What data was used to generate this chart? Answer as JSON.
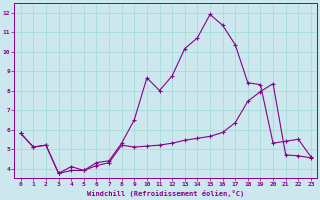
{
  "xlabel": "Windchill (Refroidissement éolien,°C)",
  "background_color": "#cce8ee",
  "line_color": "#880088",
  "grid_color": "#aadddd",
  "xlim": [
    -0.5,
    23.5
  ],
  "ylim": [
    3.5,
    12.5
  ],
  "xticks": [
    0,
    1,
    2,
    3,
    4,
    5,
    6,
    7,
    8,
    9,
    10,
    11,
    12,
    13,
    14,
    15,
    16,
    17,
    18,
    19,
    20,
    21,
    22,
    23
  ],
  "yticks": [
    4,
    5,
    6,
    7,
    8,
    9,
    10,
    11,
    12
  ],
  "line1_x": [
    0,
    1,
    2,
    3,
    4,
    5,
    6,
    7,
    8,
    9,
    10,
    11,
    12,
    13,
    14,
    15,
    16,
    17,
    18,
    19,
    20,
    21,
    22,
    23
  ],
  "line1_y": [
    5.8,
    5.1,
    5.2,
    3.75,
    4.1,
    3.9,
    4.3,
    4.4,
    5.3,
    6.5,
    8.65,
    8.0,
    8.75,
    10.15,
    10.7,
    11.9,
    11.35,
    10.35,
    8.4,
    8.3,
    5.3,
    5.4,
    5.5,
    4.6
  ],
  "line2_x": [
    0,
    1,
    2,
    3,
    4,
    5,
    6,
    7,
    8,
    9,
    10,
    11,
    12,
    13,
    14,
    15,
    16,
    17,
    18,
    19,
    20,
    21,
    22,
    23
  ],
  "line2_y": [
    5.8,
    5.1,
    5.2,
    3.75,
    3.9,
    3.9,
    4.15,
    4.3,
    5.2,
    5.1,
    5.15,
    5.2,
    5.3,
    5.45,
    5.55,
    5.65,
    5.85,
    6.35,
    7.45,
    7.95,
    8.35,
    4.7,
    4.65,
    4.55
  ]
}
